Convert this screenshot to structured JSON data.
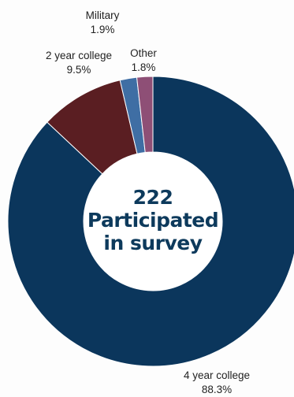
{
  "chart_data": {
    "type": "pie",
    "donut": true,
    "center_text": [
      "222",
      "Participated",
      "in survey"
    ],
    "slices": [
      {
        "label": "4 year college",
        "value": 88.3,
        "display": "88.3%",
        "color": "#0b365c"
      },
      {
        "label": "2 year college",
        "value": 9.5,
        "display": "9.5%",
        "color": "#5a1e22"
      },
      {
        "label": "Military",
        "value": 1.9,
        "display": "1.9%",
        "color": "#3f6ea4"
      },
      {
        "label": "Other",
        "value": 1.8,
        "display": "1.8%",
        "color": "#8e4f76"
      }
    ]
  }
}
